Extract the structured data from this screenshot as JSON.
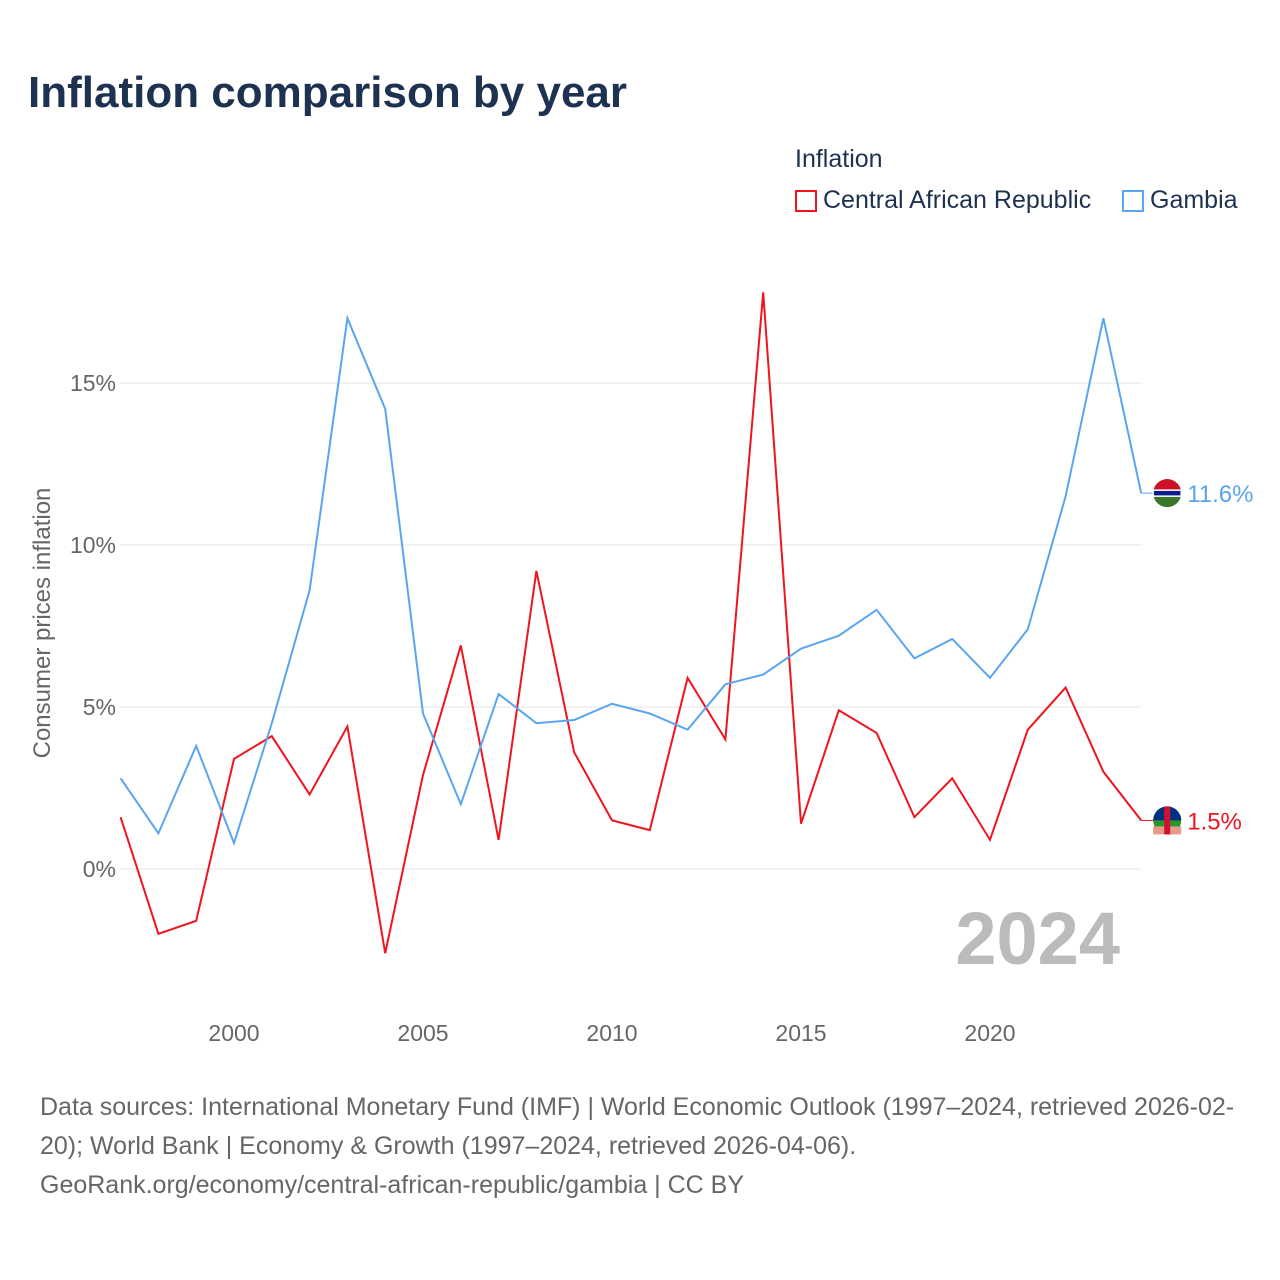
{
  "title": "Inflation comparison by year",
  "legend": {
    "title": "Inflation",
    "items": [
      {
        "name": "Central African Republic",
        "color": "#f0141e"
      },
      {
        "name": "Gambia",
        "color": "#5aa5f0"
      }
    ]
  },
  "source": {
    "line1": "Data sources: International Monetary Fund (IMF) | World Economic Outlook (1997–2024, retrieved 2026-02-20); World Bank | Economy & Growth (1997–2024, retrieved 2026-04-06).",
    "line2": "GeoRank.org/economy/central-african-republic/gambia | CC BY"
  },
  "chart_data": {
    "type": "line",
    "title": "Inflation comparison by year",
    "ylabel": "Consumer prices inflation",
    "xlabel": "",
    "year_watermark": "2024",
    "ylim": [
      -4,
      18
    ],
    "xlim": [
      1997,
      2024
    ],
    "yticks": [
      0,
      5,
      10,
      15
    ],
    "ytick_labels": [
      "0%",
      "5%",
      "10%",
      "15%"
    ],
    "xticks": [
      2000,
      2005,
      2010,
      2015,
      2020
    ],
    "xtick_labels": [
      "2000",
      "2005",
      "2010",
      "2015",
      "2020"
    ],
    "grid": true,
    "legend_position": "top-right",
    "x": [
      1997,
      1998,
      1999,
      2000,
      2001,
      2002,
      2003,
      2004,
      2005,
      2006,
      2007,
      2008,
      2009,
      2010,
      2011,
      2012,
      2013,
      2014,
      2015,
      2016,
      2017,
      2018,
      2019,
      2020,
      2021,
      2022,
      2023,
      2024
    ],
    "series": [
      {
        "name": "Central African Republic",
        "color": "#f0141e",
        "end_label": "1.5%",
        "values": [
          1.6,
          -2.0,
          -1.6,
          3.4,
          4.1,
          2.3,
          4.4,
          -2.6,
          2.9,
          6.9,
          0.9,
          9.2,
          3.6,
          1.5,
          1.2,
          5.9,
          4.0,
          17.8,
          1.4,
          4.9,
          4.2,
          1.6,
          2.8,
          0.9,
          4.3,
          5.6,
          3.0,
          1.5
        ]
      },
      {
        "name": "Gambia",
        "color": "#5aa5f0",
        "end_label": "11.6%",
        "values": [
          2.8,
          1.1,
          3.8,
          0.8,
          4.5,
          8.6,
          17.0,
          14.2,
          4.8,
          2.0,
          5.4,
          4.5,
          4.6,
          5.1,
          4.8,
          4.3,
          5.7,
          6.0,
          6.8,
          7.2,
          8.0,
          6.5,
          7.1,
          5.9,
          7.4,
          11.5,
          17.0,
          11.6
        ]
      }
    ]
  }
}
